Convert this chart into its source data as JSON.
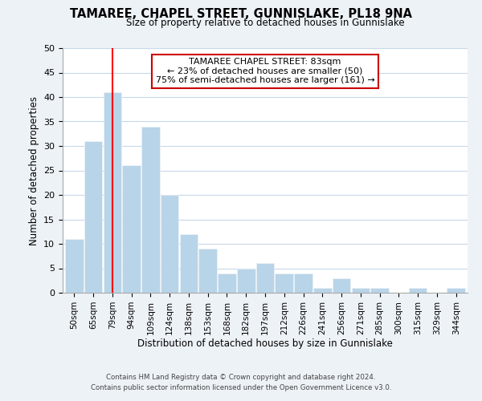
{
  "title": "TAMAREE, CHAPEL STREET, GUNNISLAKE, PL18 9NA",
  "subtitle": "Size of property relative to detached houses in Gunnislake",
  "xlabel": "Distribution of detached houses by size in Gunnislake",
  "ylabel": "Number of detached properties",
  "categories": [
    "50sqm",
    "65sqm",
    "79sqm",
    "94sqm",
    "109sqm",
    "124sqm",
    "138sqm",
    "153sqm",
    "168sqm",
    "182sqm",
    "197sqm",
    "212sqm",
    "226sqm",
    "241sqm",
    "256sqm",
    "271sqm",
    "285sqm",
    "300sqm",
    "315sqm",
    "329sqm",
    "344sqm"
  ],
  "values": [
    11,
    31,
    41,
    26,
    34,
    20,
    12,
    9,
    4,
    5,
    6,
    4,
    4,
    1,
    3,
    1,
    1,
    0,
    1,
    0,
    1
  ],
  "bar_color": "#b8d4e8",
  "vline_x": 2,
  "vline_color": "red",
  "annotation_title": "TAMAREE CHAPEL STREET: 83sqm",
  "annotation_line1": "← 23% of detached houses are smaller (50)",
  "annotation_line2": "75% of semi-detached houses are larger (161) →",
  "annotation_box_color": "#ffffff",
  "annotation_box_edge": "#cc0000",
  "ylim": [
    0,
    50
  ],
  "yticks": [
    0,
    5,
    10,
    15,
    20,
    25,
    30,
    35,
    40,
    45,
    50
  ],
  "footer_line1": "Contains HM Land Registry data © Crown copyright and database right 2024.",
  "footer_line2": "Contains public sector information licensed under the Open Government Licence v3.0.",
  "bg_color": "#edf2f7",
  "plot_bg_color": "#ffffff",
  "grid_color": "#c8d8e8"
}
